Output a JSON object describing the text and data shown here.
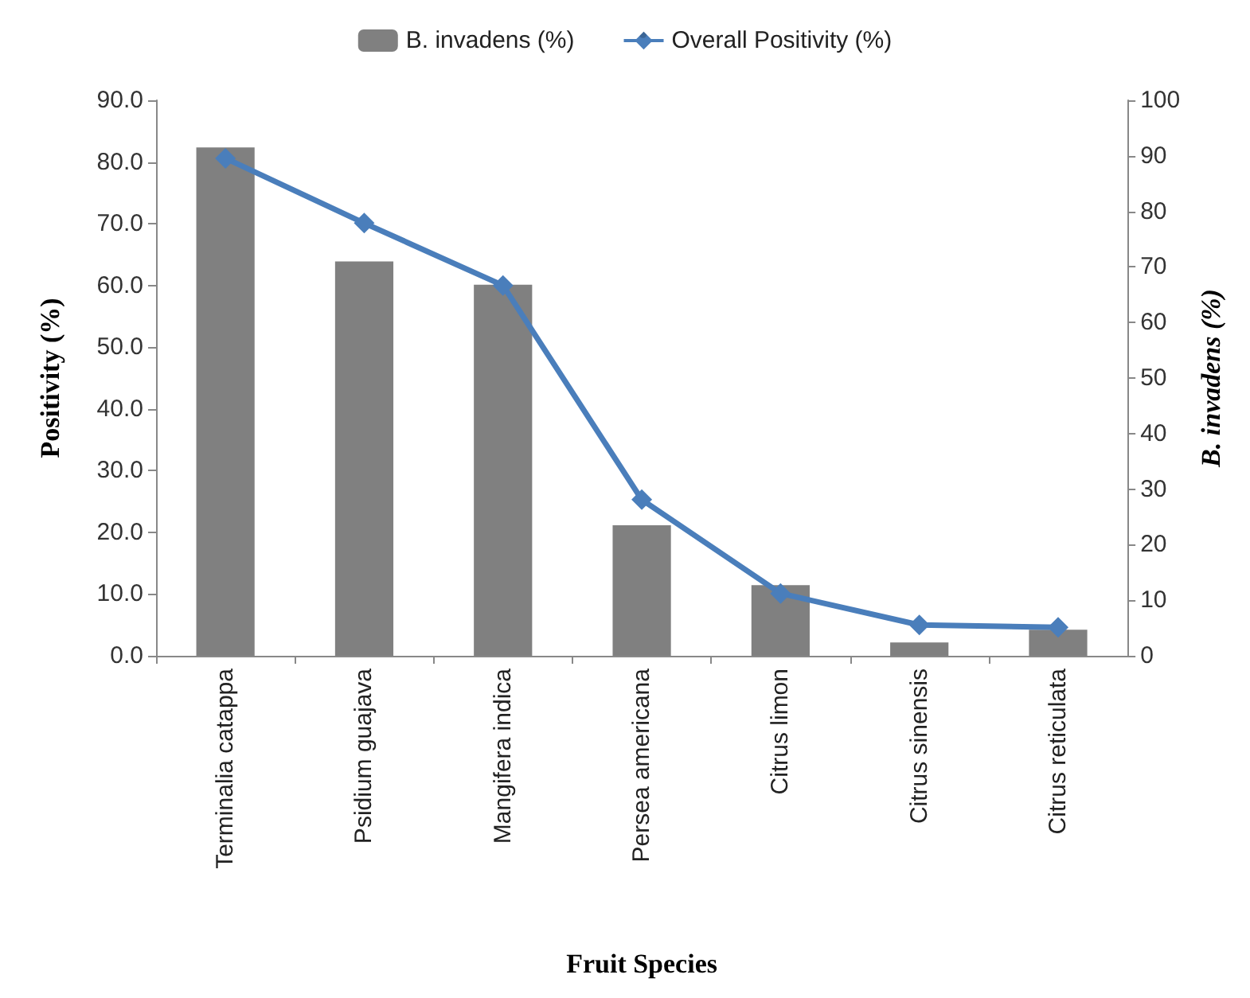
{
  "chart_data": {
    "type": "bar",
    "xlabel": "Fruit Species",
    "ylabel": "Positivity (%)",
    "y2label": "B. invadens (%)",
    "categories": [
      "Terminalia catappa",
      "Psidium guajava",
      "Mangifera indica",
      "Persea americana",
      "Citrus limon",
      "Citrus sinensis",
      "Citrus reticulata"
    ],
    "series": [
      {
        "name": "B. invadens (%)",
        "axis": "y2",
        "color": "#808080",
        "values": [
          91.5,
          71.0,
          66.8,
          23.5,
          12.7,
          2.4,
          4.7
        ]
      },
      {
        "name": "Overall Positivity (%)",
        "type": "line",
        "color": "#4a7ebb",
        "marker": "diamond",
        "values": [
          80.6,
          70.1,
          60.0,
          25.3,
          10.1,
          5.0,
          4.6
        ]
      }
    ],
    "ylim": [
      0,
      90
    ],
    "yticks": [
      {
        "value": 0,
        "label": "0.0"
      },
      {
        "value": 10,
        "label": "10.0"
      },
      {
        "value": 20,
        "label": "20.0"
      },
      {
        "value": 30,
        "label": "30.0"
      },
      {
        "value": 40,
        "label": "40.0"
      },
      {
        "value": 50,
        "label": "50.0"
      },
      {
        "value": 60,
        "label": "60.0"
      },
      {
        "value": 70,
        "label": "70.0"
      },
      {
        "value": 80,
        "label": "80.0"
      },
      {
        "value": 90,
        "label": "90.0"
      }
    ],
    "y2lim": [
      0,
      100
    ],
    "y2ticks": [
      0,
      10,
      20,
      30,
      40,
      50,
      60,
      70,
      80,
      90,
      100
    ],
    "legend": "top",
    "grid": false
  }
}
